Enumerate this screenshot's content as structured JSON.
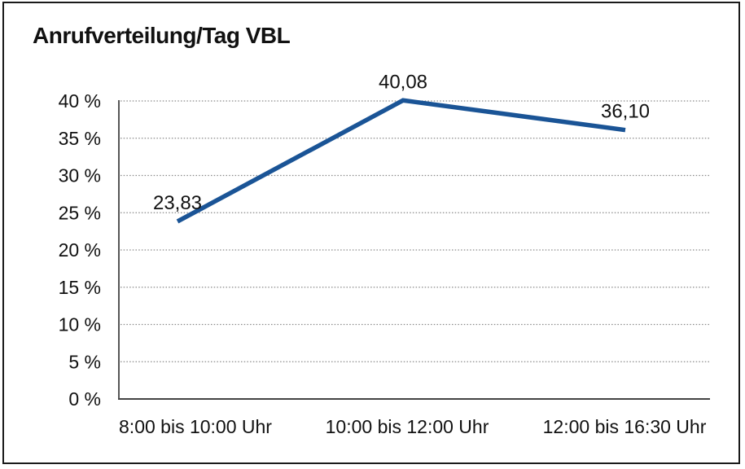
{
  "title": "Anrufverteilung/Tag VBL",
  "colors": {
    "line": "#1A5496",
    "grid": "#8a8a8a",
    "axis": "#444444",
    "text": "#111111",
    "border": "#1a1a1a",
    "background": "#ffffff"
  },
  "chart_data": {
    "type": "line",
    "title": "Anrufverteilung/Tag VBL",
    "categories": [
      "8:00 bis 10:00 Uhr",
      "10:00 bis 12:00 Uhr",
      "12:00 bis 16:30 Uhr"
    ],
    "series": [
      {
        "name": "Anrufverteilung/Tag VBL",
        "values": [
          23.83,
          40.08,
          36.1
        ]
      }
    ],
    "data_labels": [
      "23,83",
      "40,08",
      "36,10"
    ],
    "xlabel": "",
    "ylabel": "",
    "ylim": [
      0,
      40
    ],
    "ytick_step": 5,
    "ytick_labels": [
      "0 %",
      "5 %",
      "10 %",
      "15 %",
      "20 %",
      "25 %",
      "30 %",
      "35 %",
      "40 %"
    ],
    "grid": "horizontal-dotted",
    "legend": "none"
  }
}
